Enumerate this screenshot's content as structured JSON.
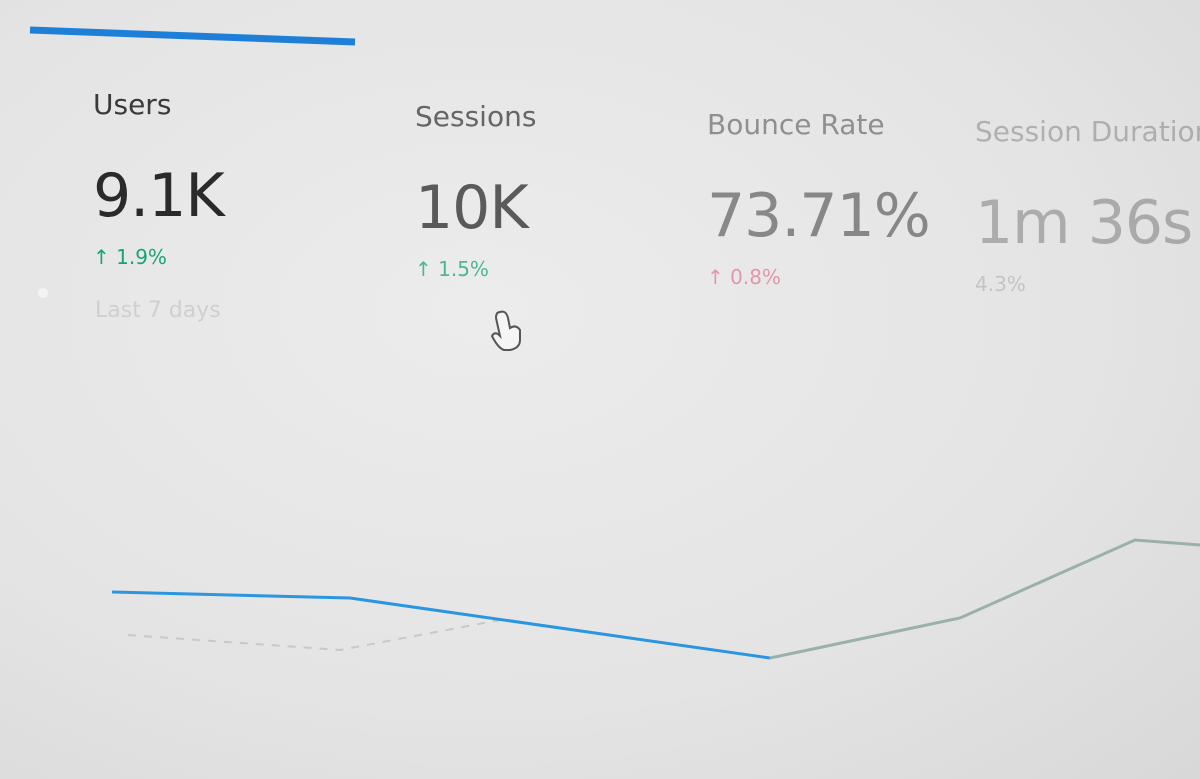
{
  "metrics": [
    {
      "label": "Users",
      "value": "9.1K",
      "change": "↑ 1.9%"
    },
    {
      "label": "Sessions",
      "value": "10K",
      "change": "↑ 1.5%"
    },
    {
      "label": "Bounce Rate",
      "value": "73.71%",
      "change": "↑ 0.8%"
    },
    {
      "label": "Session Duration",
      "value": "1m 36s",
      "change": "4.3%"
    }
  ],
  "date_range": "Last 7 days"
}
